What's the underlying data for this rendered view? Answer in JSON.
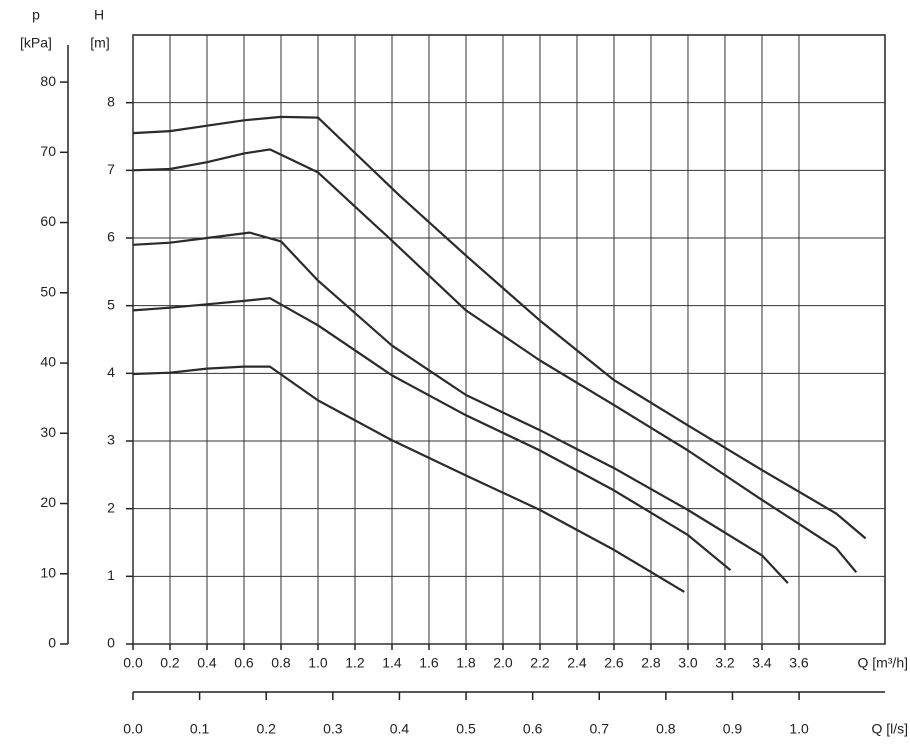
{
  "chart_data": {
    "type": "line",
    "x_label": "Q [m³/h]",
    "x2_label": "Q [l/s]",
    "y_label": "H",
    "y_unit": "[m]",
    "y2_label": "p",
    "y2_unit": "[kPa]",
    "xlim": [
      0,
      4.065
    ],
    "xticks": [
      {
        "value": 0,
        "label": "0.0"
      },
      0.2,
      0.4,
      0.6,
      0.8,
      {
        "value": 1,
        "label": "1.0"
      },
      1.2,
      1.4,
      1.6,
      1.8,
      {
        "value": 2,
        "label": "2.0"
      },
      2.2,
      2.4,
      2.6,
      2.8,
      {
        "value": 3,
        "label": "3.0"
      },
      3.2,
      3.4,
      3.6
    ],
    "x2lim": [
      0,
      1.129
    ],
    "x2ticks": [
      {
        "value": 0,
        "label": "0.0"
      },
      0.1,
      0.2,
      0.3,
      0.4,
      0.5,
      0.6,
      0.7,
      0.8,
      0.9,
      {
        "value": 1,
        "label": "1.0"
      }
    ],
    "ylim": [
      0,
      9
    ],
    "yticks": [
      0,
      1,
      2,
      3,
      4,
      5,
      6,
      7,
      8
    ],
    "y2lim": [
      0,
      86.7
    ],
    "y2ticks": [
      0,
      10,
      20,
      30,
      40,
      50,
      60,
      70,
      80
    ],
    "grid": true,
    "series": [
      {
        "color": "#2b2b2b",
        "x": [
          0,
          0.2,
          0.4,
          0.6,
          0.8,
          1.0,
          1.44,
          1.8,
          2.2,
          2.6,
          3.0,
          3.4,
          3.8,
          3.96
        ],
        "values": [
          7.55,
          7.58,
          7.66,
          7.74,
          7.79,
          7.78,
          6.63,
          5.74,
          4.78,
          3.9,
          3.23,
          2.57,
          1.93,
          1.56
        ]
      },
      {
        "color": "#2b2b2b",
        "x": [
          0,
          0.2,
          0.4,
          0.6,
          0.74,
          1.0,
          1.4,
          1.8,
          2.2,
          2.6,
          3.0,
          3.4,
          3.8,
          3.91
        ],
        "values": [
          7.0,
          7.02,
          7.12,
          7.25,
          7.31,
          6.97,
          5.96,
          4.93,
          4.19,
          3.53,
          2.86,
          2.13,
          1.42,
          1.06
        ]
      },
      {
        "color": "#2b2b2b",
        "x": [
          0,
          0.2,
          0.4,
          0.63,
          0.8,
          1.0,
          1.4,
          1.8,
          2.2,
          2.6,
          3.0,
          3.4,
          3.54
        ],
        "values": [
          5.9,
          5.93,
          6.0,
          6.08,
          5.95,
          5.37,
          4.41,
          3.68,
          3.16,
          2.6,
          1.98,
          1.31,
          0.9
        ]
      },
      {
        "color": "#2b2b2b",
        "x": [
          0,
          0.2,
          0.4,
          0.6,
          0.74,
          1.0,
          1.4,
          1.8,
          2.2,
          2.6,
          3.0,
          3.23
        ],
        "values": [
          4.93,
          4.97,
          5.02,
          5.07,
          5.11,
          4.71,
          3.97,
          3.38,
          2.86,
          2.27,
          1.61,
          1.09
        ]
      },
      {
        "color": "#2b2b2b",
        "x": [
          0,
          0.2,
          0.4,
          0.6,
          0.74,
          1.0,
          1.4,
          1.8,
          2.2,
          2.6,
          2.98
        ],
        "values": [
          3.99,
          4.01,
          4.07,
          4.1,
          4.1,
          3.6,
          3.01,
          2.49,
          1.98,
          1.39,
          0.77
        ]
      }
    ]
  }
}
